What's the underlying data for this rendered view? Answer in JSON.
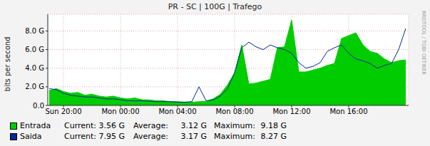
{
  "chart_data": {
    "type": "area",
    "title": "PR - SC | 100G | Trafego",
    "y_label": "bits per second",
    "annotations": [
      "RRDTOOL / TOBI OETIKER"
    ],
    "grid": true,
    "legend": "bottom",
    "x": [
      19,
      19.5,
      20,
      20.5,
      21,
      21.5,
      22,
      22.5,
      23,
      23.5,
      24,
      24.5,
      25,
      25.5,
      26,
      26.5,
      27,
      27.5,
      28,
      28.5,
      29,
      29.5,
      30,
      30.5,
      31,
      31.5,
      32,
      32.5,
      33,
      33.5,
      34,
      34.5,
      35,
      35.5,
      36,
      36.5,
      37,
      37.5,
      38,
      38.5,
      39,
      39.5,
      40,
      40.5,
      41,
      41.5,
      42,
      42.5,
      43,
      43.5,
      44
    ],
    "xlim": [
      18.9,
      44.2
    ],
    "xticks": [
      {
        "value": 20,
        "label": "Sun 20:00"
      },
      {
        "value": 24,
        "label": "Mon 00:00"
      },
      {
        "value": 28,
        "label": "Mon 04:00"
      },
      {
        "value": 32,
        "label": "Mon 08:00"
      },
      {
        "value": 36,
        "label": "Mon 12:00"
      },
      {
        "value": 40,
        "label": "Mon 16:00"
      }
    ],
    "ylim": [
      0,
      9800000000.0
    ],
    "yticks": [
      {
        "value": 0,
        "label": "0.0"
      },
      {
        "value": 2000000000.0,
        "label": "2.0 G"
      },
      {
        "value": 4000000000.0,
        "label": "4.0 G"
      },
      {
        "value": 6000000000.0,
        "label": "6.0 G"
      },
      {
        "value": 8000000000.0,
        "label": "8.0 G"
      }
    ],
    "series": [
      {
        "name": "Entrada",
        "type": "area",
        "color": "#00cc00",
        "values": [
          1600000000.0,
          1800000000.0,
          1500000000.0,
          1300000000.0,
          1400000000.0,
          1100000000.0,
          1200000000.0,
          1000000000.0,
          900000000.0,
          1000000000.0,
          800000000.0,
          700000000.0,
          800000000.0,
          600000000.0,
          600000000.0,
          500000000.0,
          500000000.0,
          400000000.0,
          400000000.0,
          350000000.0,
          350000000.0,
          400000000.0,
          450000000.0,
          700000000.0,
          1200000000.0,
          2200000000.0,
          3500000000.0,
          6500000000.0,
          2300000000.0,
          2400000000.0,
          2600000000.0,
          2800000000.0,
          6200000000.0,
          6300000000.0,
          9180000000.0,
          3600000000.0,
          3600000000.0,
          3800000000.0,
          4000000000.0,
          4300000000.0,
          4500000000.0,
          7200000000.0,
          7500000000.0,
          7800000000.0,
          6500000000.0,
          5800000000.0,
          5600000000.0,
          5000000000.0,
          4600000000.0,
          4800000000.0,
          4900000000.0
        ],
        "stats": [
          {
            "name": "Current:",
            "value": 3560000000.0,
            "value_label": "3.56 G"
          },
          {
            "name": "Average:",
            "value": 3120000000.0,
            "value_label": "3.12 G"
          },
          {
            "name": "Maximum:",
            "value": 9180000000.0,
            "value_label": "9.18 G"
          }
        ]
      },
      {
        "name": "Saida",
        "type": "line",
        "color": "#002a97",
        "values": [
          1800000000.0,
          1700000000.0,
          1300000000.0,
          1100000000.0,
          1000000000.0,
          900000000.0,
          900000000.0,
          800000000.0,
          700000000.0,
          700000000.0,
          600000000.0,
          500000000.0,
          500000000.0,
          500000000.0,
          450000000.0,
          400000000.0,
          400000000.0,
          400000000.0,
          350000000.0,
          350000000.0,
          400000000.0,
          2000000000.0,
          500000000.0,
          600000000.0,
          1000000000.0,
          1800000000.0,
          3500000000.0,
          6200000000.0,
          6800000000.0,
          6300000000.0,
          6000000000.0,
          6500000000.0,
          6200000000.0,
          6000000000.0,
          5600000000.0,
          4600000000.0,
          4000000000.0,
          4200000000.0,
          4600000000.0,
          5800000000.0,
          6200000000.0,
          6500000000.0,
          5600000000.0,
          5000000000.0,
          4800000000.0,
          4500000000.0,
          4000000000.0,
          4300000000.0,
          4500000000.0,
          6000000000.0,
          8270000000.0
        ],
        "stats": [
          {
            "name": "Current:",
            "value": 7950000000.0,
            "value_label": "7.95 G"
          },
          {
            "name": "Average:",
            "value": 3170000000.0,
            "value_label": "3.17 G"
          },
          {
            "name": "Maximum:",
            "value": 8270000000.0,
            "value_label": "8.27 G"
          }
        ]
      }
    ]
  }
}
